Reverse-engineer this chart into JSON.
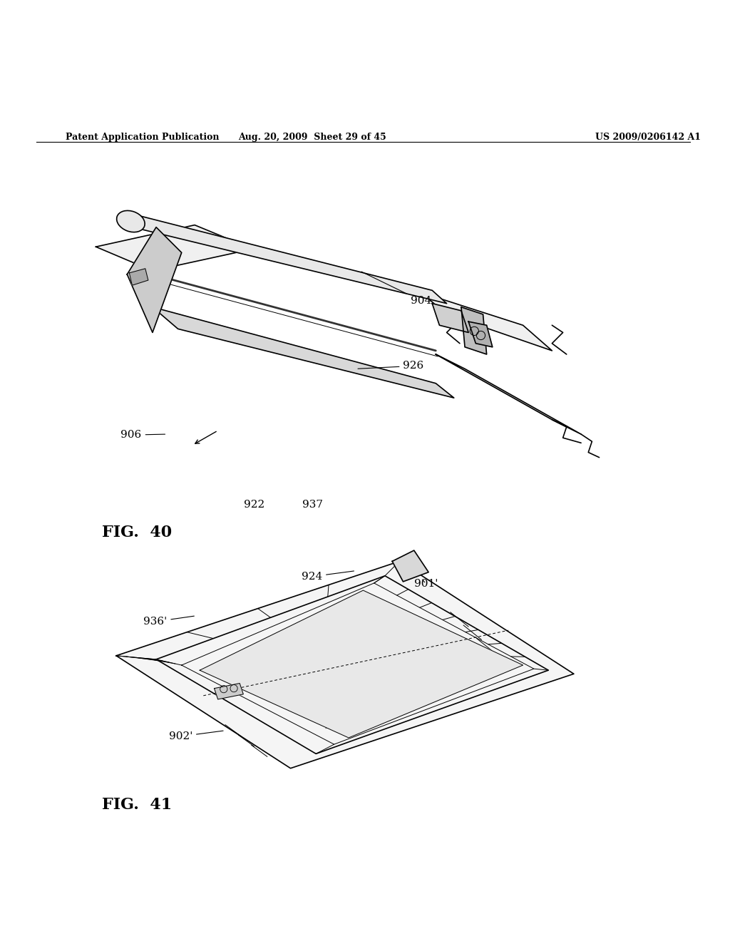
{
  "bg_color": "#ffffff",
  "line_color": "#000000",
  "header_left": "Patent Application Publication",
  "header_mid": "Aug. 20, 2009  Sheet 29 of 45",
  "header_right": "US 2009/0206142 A1",
  "fig40_label": "FIG.  40",
  "fig41_label": "FIG.  41"
}
